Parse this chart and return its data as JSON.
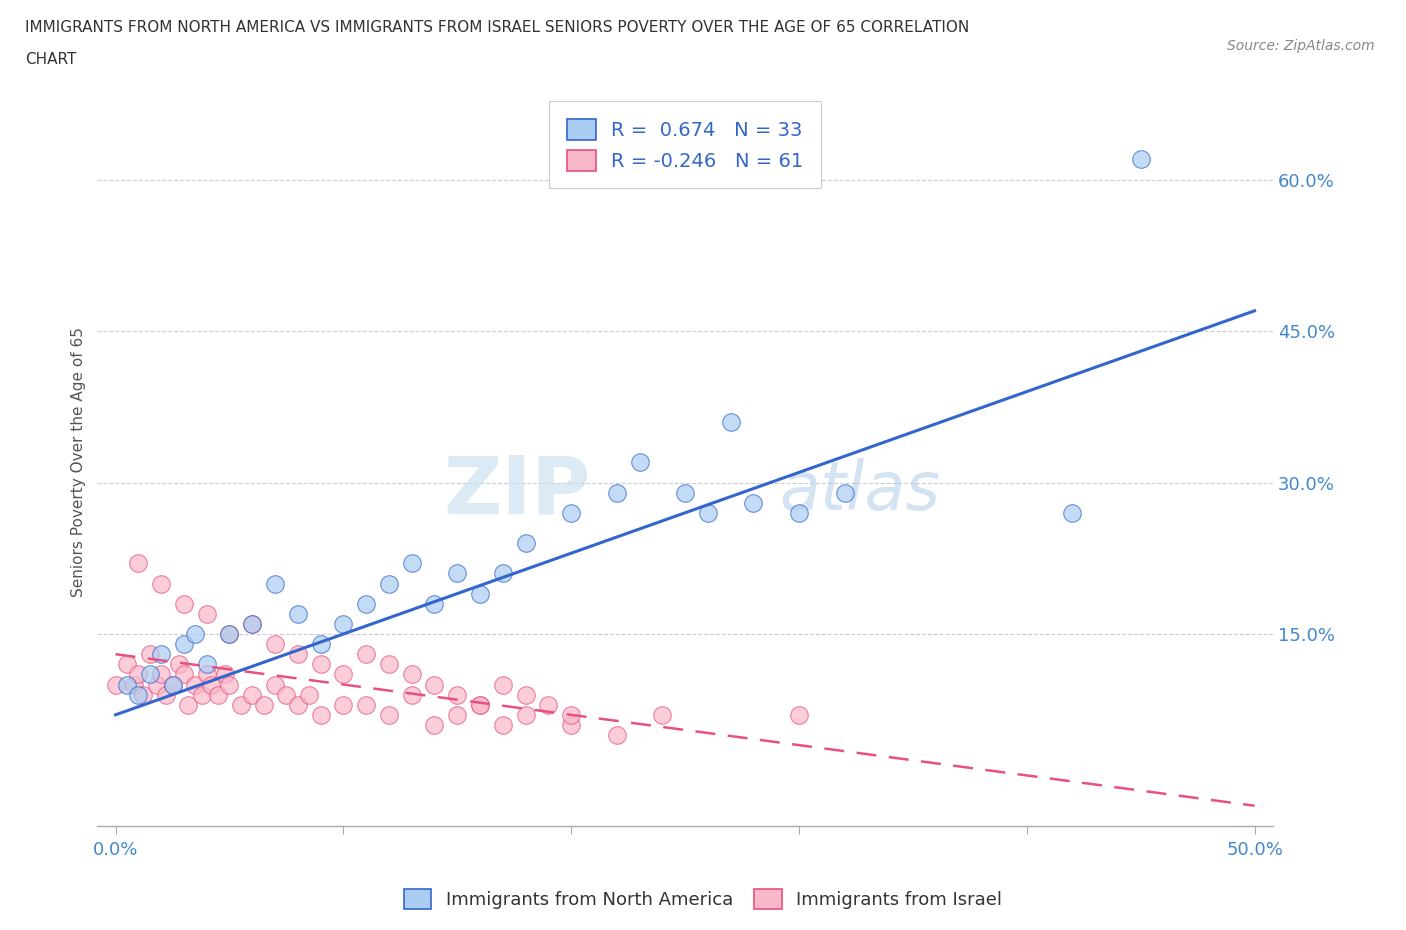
{
  "title_line1": "IMMIGRANTS FROM NORTH AMERICA VS IMMIGRANTS FROM ISRAEL SENIORS POVERTY OVER THE AGE OF 65 CORRELATION",
  "title_line2": "CHART",
  "source": "Source: ZipAtlas.com",
  "ylabel": "Seniors Poverty Over the Age of 65",
  "xlim": [
    -0.008,
    0.508
  ],
  "ylim": [
    -0.04,
    0.68
  ],
  "blue_R": 0.674,
  "blue_N": 33,
  "pink_R": -0.246,
  "pink_N": 61,
  "blue_color": "#aaccf0",
  "pink_color": "#f8b8c8",
  "blue_line_color": "#3366cc",
  "pink_line_color": "#e85080",
  "watermark_zip": "ZIP",
  "watermark_atlas": "atlas",
  "legend_label_blue": "Immigrants from North America",
  "legend_label_pink": "Immigrants from Israel",
  "blue_line_x0": 0.0,
  "blue_line_y0": 0.07,
  "blue_line_x1": 0.5,
  "blue_line_y1": 0.47,
  "pink_line_x0": 0.0,
  "pink_line_y0": 0.13,
  "pink_line_x1": 0.5,
  "pink_line_y1": -0.02,
  "blue_scatter_x": [
    0.005,
    0.01,
    0.015,
    0.02,
    0.025,
    0.03,
    0.035,
    0.04,
    0.05,
    0.06,
    0.07,
    0.08,
    0.09,
    0.1,
    0.11,
    0.12,
    0.13,
    0.14,
    0.15,
    0.16,
    0.17,
    0.18,
    0.2,
    0.22,
    0.23,
    0.25,
    0.26,
    0.27,
    0.28,
    0.3,
    0.32,
    0.42,
    0.45
  ],
  "blue_scatter_y": [
    0.1,
    0.09,
    0.11,
    0.13,
    0.1,
    0.14,
    0.15,
    0.12,
    0.15,
    0.16,
    0.2,
    0.17,
    0.14,
    0.16,
    0.18,
    0.2,
    0.22,
    0.18,
    0.21,
    0.19,
    0.21,
    0.24,
    0.27,
    0.29,
    0.32,
    0.29,
    0.27,
    0.36,
    0.28,
    0.27,
    0.29,
    0.27,
    0.62
  ],
  "pink_scatter_x": [
    0.0,
    0.005,
    0.008,
    0.01,
    0.012,
    0.015,
    0.018,
    0.02,
    0.022,
    0.025,
    0.028,
    0.03,
    0.032,
    0.035,
    0.038,
    0.04,
    0.042,
    0.045,
    0.048,
    0.05,
    0.055,
    0.06,
    0.065,
    0.07,
    0.075,
    0.08,
    0.085,
    0.09,
    0.1,
    0.11,
    0.12,
    0.13,
    0.14,
    0.15,
    0.16,
    0.17,
    0.18,
    0.2,
    0.22,
    0.24,
    0.01,
    0.02,
    0.03,
    0.04,
    0.05,
    0.06,
    0.07,
    0.08,
    0.09,
    0.1,
    0.11,
    0.12,
    0.13,
    0.14,
    0.15,
    0.16,
    0.17,
    0.18,
    0.19,
    0.2,
    0.3
  ],
  "pink_scatter_y": [
    0.1,
    0.12,
    0.1,
    0.11,
    0.09,
    0.13,
    0.1,
    0.11,
    0.09,
    0.1,
    0.12,
    0.11,
    0.08,
    0.1,
    0.09,
    0.11,
    0.1,
    0.09,
    0.11,
    0.1,
    0.08,
    0.09,
    0.08,
    0.1,
    0.09,
    0.08,
    0.09,
    0.07,
    0.08,
    0.08,
    0.07,
    0.09,
    0.06,
    0.07,
    0.08,
    0.06,
    0.07,
    0.06,
    0.05,
    0.07,
    0.22,
    0.2,
    0.18,
    0.17,
    0.15,
    0.16,
    0.14,
    0.13,
    0.12,
    0.11,
    0.13,
    0.12,
    0.11,
    0.1,
    0.09,
    0.08,
    0.1,
    0.09,
    0.08,
    0.07,
    0.07
  ]
}
